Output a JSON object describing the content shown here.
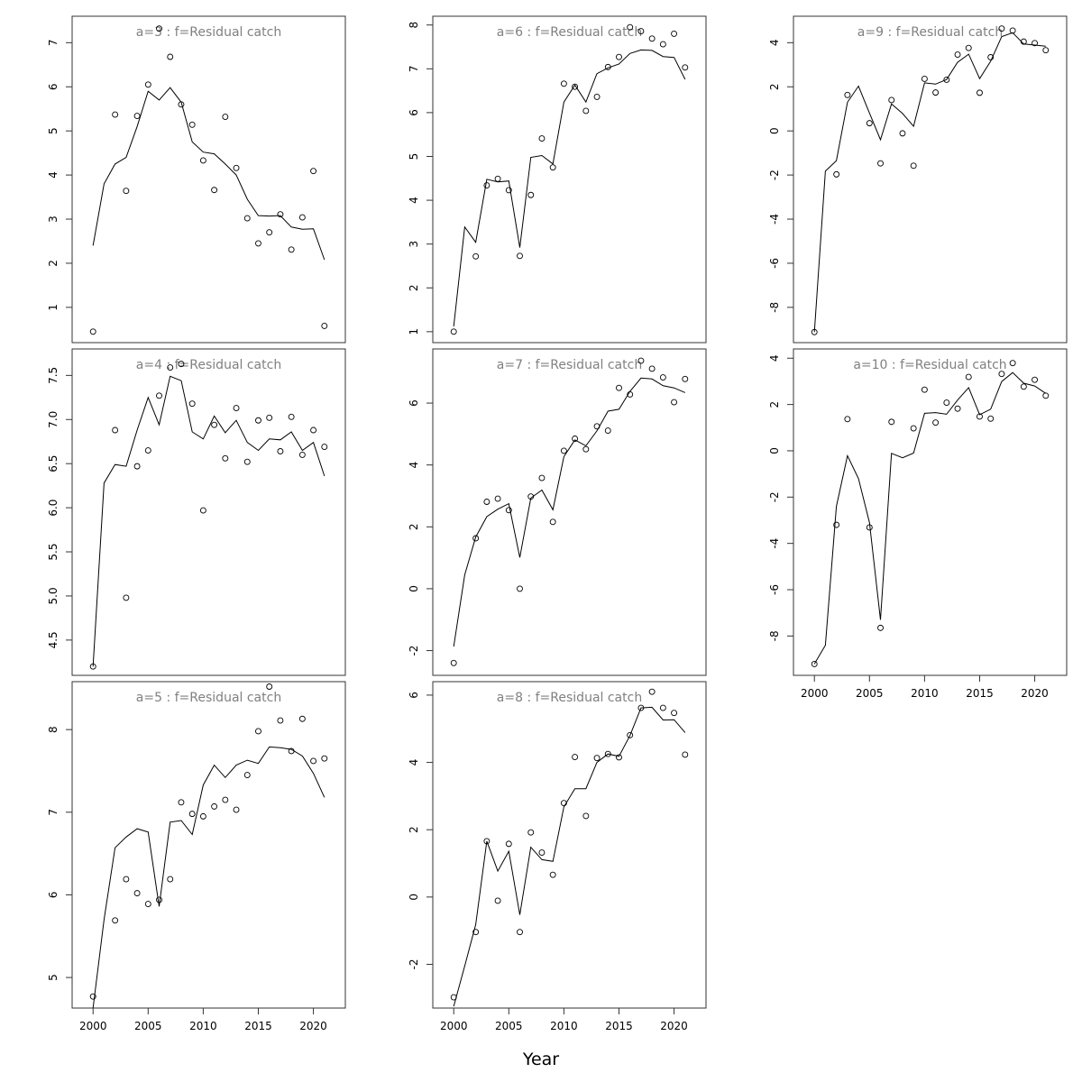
{
  "figure": {
    "xlabel": "Year"
  },
  "chart_data": [
    {
      "type": "scatter+line",
      "title": "a=3  :  f=Residual catch",
      "xlim": [
        1998.1,
        2022.9
      ],
      "ylim": [
        0.2,
        7.6
      ],
      "xticks": [
        2000,
        2005,
        2010,
        2015,
        2020
      ],
      "yticks": [
        1,
        2,
        3,
        4,
        5,
        6,
        7
      ],
      "show_xaxis": false,
      "x": [
        2000,
        2001,
        2002,
        2003,
        2004,
        2005,
        2006,
        2007,
        2008,
        2009,
        2010,
        2011,
        2012,
        2013,
        2014,
        2015,
        2016,
        2017,
        2018,
        2019,
        2020,
        2021
      ],
      "observed": [
        0.45,
        null,
        5.37,
        3.64,
        5.34,
        6.05,
        7.32,
        6.68,
        5.6,
        5.14,
        4.33,
        3.66,
        5.32,
        4.16,
        3.02,
        2.45,
        2.7,
        3.11,
        2.31,
        3.04,
        4.09,
        0.58
      ],
      "fitted": [
        2.4,
        3.8,
        4.25,
        4.4,
        5.1,
        5.9,
        5.7,
        5.98,
        5.65,
        4.75,
        4.52,
        4.48,
        4.25,
        4.0,
        3.45,
        3.08,
        3.07,
        3.08,
        2.82,
        2.77,
        2.78,
        2.08
      ]
    },
    {
      "type": "scatter+line",
      "title": "a=4  :  f=Residual catch",
      "xlim": [
        1998.1,
        2022.9
      ],
      "ylim": [
        4.1,
        7.8
      ],
      "xticks": [
        2000,
        2005,
        2010,
        2015,
        2020
      ],
      "yticks": [
        4.5,
        5.0,
        5.5,
        6.0,
        6.5,
        7.0,
        7.5
      ],
      "ytick_labels": [
        "4.5",
        "5.0",
        "5.5",
        "6.0",
        "6.5",
        "7.0",
        "7.5"
      ],
      "show_xaxis": false,
      "x": [
        2000,
        2001,
        2002,
        2003,
        2004,
        2005,
        2006,
        2007,
        2008,
        2009,
        2010,
        2011,
        2012,
        2013,
        2014,
        2015,
        2016,
        2017,
        2018,
        2019,
        2020,
        2021
      ],
      "observed": [
        4.2,
        null,
        6.88,
        4.98,
        6.47,
        6.65,
        7.27,
        7.59,
        7.63,
        7.18,
        5.97,
        6.94,
        6.56,
        7.13,
        6.52,
        6.99,
        7.02,
        6.64,
        7.03,
        6.6,
        6.88,
        6.69
      ],
      "fitted": [
        4.2,
        6.28,
        6.49,
        6.47,
        6.88,
        7.25,
        6.94,
        7.49,
        7.44,
        6.86,
        6.78,
        7.04,
        6.85,
        6.99,
        6.74,
        6.65,
        6.78,
        6.77,
        6.86,
        6.65,
        6.74,
        6.36
      ]
    },
    {
      "type": "scatter+line",
      "title": "a=5  :  f=Residual catch",
      "xlim": [
        1998.1,
        2022.9
      ],
      "ylim": [
        4.63,
        8.58
      ],
      "xticks": [
        2000,
        2005,
        2010,
        2015,
        2020
      ],
      "yticks": [
        5,
        6,
        7,
        8
      ],
      "show_xaxis": true,
      "x": [
        2000,
        2001,
        2002,
        2003,
        2004,
        2005,
        2006,
        2007,
        2008,
        2009,
        2010,
        2011,
        2012,
        2013,
        2014,
        2015,
        2016,
        2017,
        2018,
        2019,
        2020,
        2021
      ],
      "observed": [
        4.77,
        null,
        5.69,
        6.19,
        6.02,
        5.89,
        5.94,
        6.19,
        7.12,
        6.98,
        6.95,
        7.07,
        7.15,
        7.03,
        7.45,
        7.98,
        8.52,
        8.11,
        7.74,
        8.13,
        7.62,
        7.65
      ],
      "fitted": [
        4.63,
        5.7,
        6.57,
        6.7,
        6.8,
        6.76,
        5.86,
        6.88,
        6.9,
        6.73,
        7.33,
        7.57,
        7.42,
        7.57,
        7.63,
        7.59,
        7.79,
        7.78,
        7.76,
        7.68,
        7.47,
        7.18
      ]
    },
    {
      "type": "scatter+line",
      "title": "a=6  :  f=Residual catch",
      "xlim": [
        1998.1,
        2022.9
      ],
      "ylim": [
        0.75,
        8.2
      ],
      "xticks": [
        2000,
        2005,
        2010,
        2015,
        2020
      ],
      "yticks": [
        1,
        2,
        3,
        4,
        5,
        6,
        7,
        8
      ],
      "show_xaxis": false,
      "x": [
        2000,
        2001,
        2002,
        2003,
        2004,
        2005,
        2006,
        2007,
        2008,
        2009,
        2010,
        2011,
        2012,
        2013,
        2014,
        2015,
        2016,
        2017,
        2018,
        2019,
        2020,
        2021
      ],
      "observed": [
        1.0,
        null,
        2.72,
        4.34,
        4.49,
        4.23,
        2.73,
        4.12,
        5.41,
        4.75,
        6.66,
        6.59,
        6.04,
        6.36,
        7.04,
        7.27,
        7.95,
        7.86,
        7.69,
        7.56,
        7.8,
        7.03
      ],
      "fitted": [
        1.12,
        3.39,
        3.04,
        4.48,
        4.42,
        4.44,
        2.92,
        4.98,
        5.02,
        4.83,
        6.24,
        6.63,
        6.24,
        6.89,
        7.02,
        7.11,
        7.35,
        7.43,
        7.42,
        7.28,
        7.26,
        6.76
      ]
    },
    {
      "type": "scatter+line",
      "title": "a=7  :  f=Residual catch",
      "xlim": [
        1998.1,
        2022.9
      ],
      "ylim": [
        -2.8,
        7.75
      ],
      "xticks": [
        2000,
        2005,
        2010,
        2015,
        2020
      ],
      "yticks": [
        -2,
        0,
        2,
        4,
        6
      ],
      "show_xaxis": false,
      "x": [
        2000,
        2001,
        2002,
        2003,
        2004,
        2005,
        2006,
        2007,
        2008,
        2009,
        2010,
        2011,
        2012,
        2013,
        2014,
        2015,
        2016,
        2017,
        2018,
        2019,
        2020,
        2021
      ],
      "observed": [
        -2.4,
        null,
        1.63,
        2.81,
        2.91,
        2.54,
        0.0,
        2.98,
        3.58,
        2.16,
        4.46,
        4.85,
        4.51,
        5.25,
        5.11,
        6.49,
        6.28,
        7.37,
        7.11,
        6.83,
        6.03,
        6.78
      ],
      "fitted": [
        -1.87,
        0.45,
        1.67,
        2.33,
        2.57,
        2.75,
        1.01,
        2.93,
        3.19,
        2.55,
        4.27,
        4.81,
        4.62,
        5.1,
        5.74,
        5.8,
        6.38,
        6.81,
        6.78,
        6.56,
        6.49,
        6.34
      ]
    },
    {
      "type": "scatter+line",
      "title": "a=8  :  f=Residual catch",
      "xlim": [
        1998.1,
        2022.9
      ],
      "ylim": [
        -3.3,
        6.4
      ],
      "xticks": [
        2000,
        2005,
        2010,
        2015,
        2020
      ],
      "yticks": [
        -2,
        0,
        2,
        4,
        6
      ],
      "show_xaxis": true,
      "x": [
        2000,
        2001,
        2002,
        2003,
        2004,
        2005,
        2006,
        2007,
        2008,
        2009,
        2010,
        2011,
        2012,
        2013,
        2014,
        2015,
        2016,
        2017,
        2018,
        2019,
        2020,
        2021
      ],
      "observed": [
        -2.98,
        null,
        -1.04,
        1.66,
        -0.11,
        1.58,
        -1.04,
        1.92,
        1.32,
        0.66,
        2.79,
        4.16,
        2.41,
        4.13,
        4.25,
        4.15,
        4.81,
        5.62,
        6.1,
        5.62,
        5.47,
        4.23
      ],
      "fitted": [
        -3.25,
        -2.05,
        -0.82,
        1.66,
        0.77,
        1.36,
        -0.53,
        1.48,
        1.11,
        1.06,
        2.68,
        3.22,
        3.22,
        4.0,
        4.25,
        4.18,
        4.8,
        5.62,
        5.64,
        5.26,
        5.27,
        4.89
      ]
    },
    {
      "type": "scatter+line",
      "title": "a=9  :  f=Residual catch",
      "xlim": [
        1998.1,
        2022.9
      ],
      "ylim": [
        -9.6,
        5.2
      ],
      "xticks": [
        2000,
        2005,
        2010,
        2015,
        2020
      ],
      "yticks": [
        -8,
        -6,
        -4,
        -2,
        0,
        2,
        4
      ],
      "show_xaxis": false,
      "x": [
        2000,
        2001,
        2002,
        2003,
        2004,
        2005,
        2006,
        2007,
        2008,
        2009,
        2010,
        2011,
        2012,
        2013,
        2014,
        2015,
        2016,
        2017,
        2018,
        2019,
        2020,
        2021
      ],
      "observed": [
        -9.12,
        null,
        -1.97,
        1.63,
        null,
        0.35,
        -1.47,
        1.4,
        -0.11,
        -1.58,
        2.36,
        1.74,
        2.32,
        3.46,
        3.76,
        1.73,
        3.34,
        4.64,
        4.55,
        4.05,
        3.98,
        3.66
      ],
      "fitted": [
        -9.12,
        -1.82,
        -1.35,
        1.3,
        2.03,
        0.81,
        -0.4,
        1.22,
        0.79,
        0.21,
        2.18,
        2.12,
        2.33,
        3.11,
        3.48,
        2.37,
        3.16,
        4.27,
        4.45,
        3.94,
        3.89,
        3.84
      ]
    },
    {
      "type": "scatter+line",
      "title": "a=10  :  f=Residual catch",
      "xlim": [
        1998.1,
        2022.9
      ],
      "ylim": [
        -9.7,
        4.4
      ],
      "xticks": [
        2000,
        2005,
        2010,
        2015,
        2020
      ],
      "yticks": [
        -8,
        -6,
        -4,
        -2,
        0,
        2,
        4
      ],
      "show_xaxis": true,
      "x": [
        2000,
        2001,
        2002,
        2003,
        2004,
        2005,
        2006,
        2007,
        2008,
        2009,
        2010,
        2011,
        2012,
        2013,
        2014,
        2015,
        2016,
        2017,
        2018,
        2019,
        2020,
        2021
      ],
      "observed": [
        -9.21,
        null,
        -3.2,
        1.37,
        null,
        -3.31,
        -7.65,
        1.25,
        null,
        0.97,
        2.64,
        1.22,
        2.08,
        1.82,
        3.19,
        1.48,
        1.39,
        3.32,
        3.79,
        2.77,
        3.07,
        2.38
      ],
      "fitted": [
        -9.21,
        -8.4,
        -2.4,
        -0.21,
        -1.2,
        -3.1,
        -7.3,
        -0.11,
        -0.3,
        -0.1,
        1.62,
        1.65,
        1.58,
        2.19,
        2.73,
        1.56,
        1.8,
        2.99,
        3.38,
        2.92,
        2.8,
        2.48
      ]
    }
  ]
}
